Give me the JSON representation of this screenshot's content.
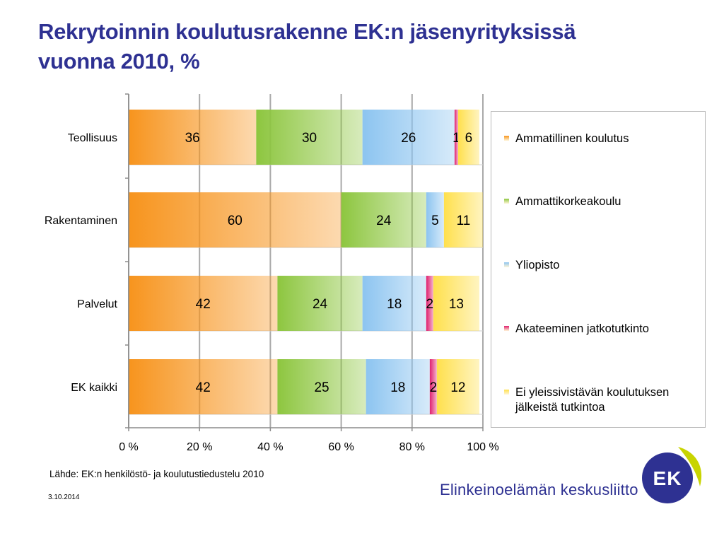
{
  "title": {
    "line1": "Rekrytoinnin koulutusrakenne EK:n jäsenyrityksissä",
    "line2": "vuonna 2010, %"
  },
  "chart_data": {
    "type": "bar",
    "orientation": "horizontal",
    "stacked": "percent",
    "categories": [
      "Teollisuus",
      "Rakentaminen",
      "Palvelut",
      "EK kaikki"
    ],
    "series": [
      {
        "name": "Ammatillinen koulutus",
        "values": [
          36,
          60,
          42,
          42
        ],
        "labels": [
          "36",
          "60",
          "42",
          "42"
        ],
        "color": "#f7941d"
      },
      {
        "name": "Ammattikorkeakoulu",
        "values": [
          30,
          24,
          24,
          25
        ],
        "labels": [
          "30",
          "24",
          "24",
          "25"
        ],
        "color": "#8dc63f"
      },
      {
        "name": "Yliopisto",
        "values": [
          26,
          5,
          18,
          18
        ],
        "labels": [
          "26",
          "5",
          "18",
          "18"
        ],
        "color": "#8cc4f0"
      },
      {
        "name": "Akateeminen jatkotutkinto",
        "values": [
          1,
          0,
          2,
          2
        ],
        "labels": [
          "1",
          "",
          "2",
          "2"
        ],
        "color": "#e0206e"
      },
      {
        "name": "Ei yleissivistävän koulutuksen jälkeistä tutkintoa",
        "values": [
          6,
          11,
          13,
          12
        ],
        "labels": [
          "6",
          "11",
          "13",
          "12"
        ],
        "color": "#ffe04d"
      }
    ],
    "xlim": [
      0,
      100
    ],
    "xticks": [
      "0 %",
      "20 %",
      "40 %",
      "60 %",
      "80 %",
      "100 %"
    ],
    "grid": true,
    "legend_position": "right"
  },
  "legend": {
    "items": [
      {
        "label": "Ammatillinen koulutus",
        "color": "#f7941d"
      },
      {
        "label": "Ammattikorkeakoulu",
        "color": "#8dc63f"
      },
      {
        "label": "Yliopisto",
        "color": "#8cc4f0"
      },
      {
        "label": "Akateeminen jatkotutkinto",
        "color": "#e0206e"
      },
      {
        "label": "Ei yleissivistävän koulutuksen jälkeistä tutkintoa",
        "color": "#ffe04d"
      }
    ]
  },
  "footer": {
    "source": "Lähde: EK:n henkilöstö- ja koulutustiedustelu 2010",
    "date": "3.10.2014",
    "org_name": "Elinkeinoelämän keskusliitto",
    "logo_text": "EK"
  },
  "colors": {
    "title": "#2e3192",
    "logo_blue": "#2e3192",
    "logo_green": "#c8d400"
  }
}
